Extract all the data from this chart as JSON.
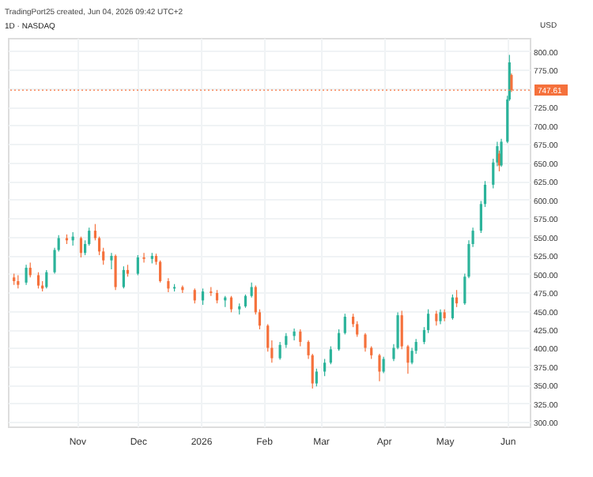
{
  "chart_data": {
    "type": "candlestick",
    "title": "1D · NASDAQ",
    "annotations": [
      "TradingPort25 created, Jun 04, 2026 09:42 UTC+2"
    ],
    "ylabel": "USD",
    "x": [
      "2025-10-01",
      "2025-10-03",
      "2025-10-07",
      "2025-10-09",
      "2025-10-13",
      "2025-10-15",
      "2025-10-17",
      "2025-10-21",
      "2025-10-23",
      "2025-10-27",
      "2025-10-30",
      "2025-11-03",
      "2025-11-05",
      "2025-11-07",
      "2025-11-10",
      "2025-11-12",
      "2025-11-14",
      "2025-11-18",
      "2025-11-20",
      "2025-11-24",
      "2025-11-26",
      "2025-12-01",
      "2025-12-04",
      "2025-12-08",
      "2025-12-10",
      "2025-12-12",
      "2025-12-16",
      "2025-12-19",
      "2025-12-23",
      "2025-12-29",
      "2026-01-02",
      "2026-01-06",
      "2026-01-09",
      "2026-01-13",
      "2026-01-16",
      "2026-01-20",
      "2026-01-23",
      "2026-01-26",
      "2026-01-28",
      "2026-01-30",
      "2026-02-03",
      "2026-02-05",
      "2026-02-09",
      "2026-02-12",
      "2026-02-16",
      "2026-02-19",
      "2026-02-23",
      "2026-02-25",
      "2026-02-27",
      "2026-03-03",
      "2026-03-06",
      "2026-03-10",
      "2026-03-13",
      "2026-03-17",
      "2026-03-19",
      "2026-03-23",
      "2026-03-26",
      "2026-03-30",
      "2026-04-01",
      "2026-04-06",
      "2026-04-08",
      "2026-04-10",
      "2026-04-13",
      "2026-04-15",
      "2026-04-17",
      "2026-04-21",
      "2026-04-23",
      "2026-04-27",
      "2026-04-29",
      "2026-05-01",
      "2026-05-05",
      "2026-05-07",
      "2026-05-11",
      "2026-05-13",
      "2026-05-15",
      "2026-05-19",
      "2026-05-21",
      "2026-05-25",
      "2026-05-27",
      "2026-05-28",
      "2026-05-29",
      "2026-06-01",
      "2026-06-02",
      "2026-06-03"
    ],
    "ohlc": [
      [
        495,
        500,
        485,
        490
      ],
      [
        490,
        498,
        480,
        485
      ],
      [
        488,
        512,
        485,
        508
      ],
      [
        508,
        515,
        495,
        498
      ],
      [
        498,
        502,
        480,
        484
      ],
      [
        484,
        490,
        476,
        480
      ],
      [
        482,
        505,
        480,
        502
      ],
      [
        502,
        535,
        500,
        532
      ],
      [
        532,
        552,
        530,
        548
      ],
      [
        548,
        553,
        540,
        545
      ],
      [
        545,
        556,
        538,
        550
      ],
      [
        548,
        550,
        522,
        528
      ],
      [
        528,
        545,
        525,
        540
      ],
      [
        540,
        562,
        538,
        558
      ],
      [
        558,
        567,
        545,
        548
      ],
      [
        548,
        550,
        525,
        530
      ],
      [
        530,
        535,
        512,
        518
      ],
      [
        518,
        528,
        506,
        524
      ],
      [
        524,
        526,
        478,
        482
      ],
      [
        482,
        510,
        480,
        505
      ],
      [
        505,
        512,
        496,
        500
      ],
      [
        500,
        525,
        498,
        522
      ],
      [
        522,
        528,
        515,
        520
      ],
      [
        520,
        528,
        514,
        524
      ],
      [
        524,
        527,
        512,
        516
      ],
      [
        516,
        518,
        488,
        490
      ],
      [
        490,
        494,
        475,
        480
      ],
      [
        480,
        486,
        476,
        482
      ],
      [
        482,
        484,
        474,
        478
      ],
      [
        478,
        480,
        460,
        464
      ],
      [
        464,
        480,
        458,
        476
      ],
      [
        476,
        482,
        470,
        474
      ],
      [
        474,
        478,
        460,
        464
      ],
      [
        464,
        470,
        455,
        468
      ],
      [
        468,
        470,
        448,
        452
      ],
      [
        452,
        460,
        445,
        456
      ],
      [
        456,
        472,
        454,
        470
      ],
      [
        470,
        488,
        468,
        482
      ],
      [
        482,
        484,
        445,
        448
      ],
      [
        448,
        452,
        425,
        430
      ],
      [
        430,
        432,
        395,
        400
      ],
      [
        400,
        410,
        380,
        386
      ],
      [
        386,
        408,
        384,
        404
      ],
      [
        404,
        420,
        400,
        416
      ],
      [
        416,
        426,
        410,
        422
      ],
      [
        422,
        425,
        402,
        408
      ],
      [
        408,
        410,
        385,
        390
      ],
      [
        390,
        392,
        345,
        352
      ],
      [
        352,
        372,
        348,
        368
      ],
      [
        368,
        385,
        362,
        380
      ],
      [
        380,
        402,
        378,
        398
      ],
      [
        398,
        425,
        396,
        420
      ],
      [
        420,
        446,
        418,
        442
      ],
      [
        442,
        446,
        428,
        432
      ],
      [
        432,
        436,
        415,
        418
      ],
      [
        418,
        420,
        395,
        400
      ],
      [
        400,
        402,
        385,
        390
      ],
      [
        390,
        392,
        355,
        368
      ],
      [
        368,
        388,
        366,
        385
      ],
      [
        385,
        405,
        382,
        400
      ],
      [
        400,
        448,
        398,
        444
      ],
      [
        444,
        450,
        398,
        402
      ],
      [
        402,
        404,
        365,
        380
      ],
      [
        380,
        400,
        378,
        396
      ],
      [
        396,
        412,
        392,
        408
      ],
      [
        408,
        428,
        405,
        424
      ],
      [
        424,
        452,
        420,
        446
      ],
      [
        446,
        450,
        430,
        436
      ],
      [
        436,
        452,
        432,
        448
      ],
      [
        448,
        452,
        436,
        440
      ],
      [
        440,
        472,
        438,
        468
      ],
      [
        468,
        478,
        455,
        460
      ],
      [
        460,
        500,
        458,
        496
      ],
      [
        496,
        545,
        494,
        540
      ],
      [
        540,
        562,
        536,
        558
      ],
      [
        558,
        598,
        555,
        594
      ],
      [
        594,
        625,
        590,
        620
      ],
      [
        620,
        655,
        615,
        650
      ],
      [
        650,
        678,
        645,
        672
      ],
      [
        662,
        666,
        638,
        646
      ],
      [
        646,
        682,
        644,
        678
      ],
      [
        678,
        740,
        676,
        735
      ],
      [
        735,
        795,
        733,
        785
      ],
      [
        768,
        770,
        745,
        747.61
      ]
    ],
    "colors": [
      "#f5713c",
      "#f5713c",
      "#2bb39a",
      "#f5713c",
      "#f5713c",
      "#f5713c",
      "#2bb39a",
      "#2bb39a",
      "#2bb39a",
      "#f5713c",
      "#2bb39a",
      "#f5713c",
      "#2bb39a",
      "#2bb39a",
      "#f5713c",
      "#f5713c",
      "#f5713c",
      "#2bb39a",
      "#f5713c",
      "#2bb39a",
      "#f5713c",
      "#2bb39a",
      "#f5713c",
      "#2bb39a",
      "#f5713c",
      "#f5713c",
      "#f5713c",
      "#2bb39a",
      "#f5713c",
      "#f5713c",
      "#2bb39a",
      "#f5713c",
      "#f5713c",
      "#2bb39a",
      "#f5713c",
      "#2bb39a",
      "#2bb39a",
      "#2bb39a",
      "#f5713c",
      "#f5713c",
      "#f5713c",
      "#f5713c",
      "#2bb39a",
      "#2bb39a",
      "#2bb39a",
      "#f5713c",
      "#f5713c",
      "#f5713c",
      "#2bb39a",
      "#2bb39a",
      "#2bb39a",
      "#2bb39a",
      "#2bb39a",
      "#f5713c",
      "#f5713c",
      "#f5713c",
      "#f5713c",
      "#f5713c",
      "#2bb39a",
      "#2bb39a",
      "#2bb39a",
      "#f5713c",
      "#f5713c",
      "#2bb39a",
      "#2bb39a",
      "#2bb39a",
      "#2bb39a",
      "#f5713c",
      "#2bb39a",
      "#f5713c",
      "#2bb39a",
      "#f5713c",
      "#2bb39a",
      "#2bb39a",
      "#2bb39a",
      "#2bb39a",
      "#2bb39a",
      "#2bb39a",
      "#2bb39a",
      "#f5713c",
      "#2bb39a",
      "#2bb39a",
      "#2bb39a",
      "#f5713c"
    ],
    "xlim": [
      "2025-09-28",
      "2026-06-12"
    ],
    "xticks": [
      {
        "value": "2025-11-01",
        "label": "Nov"
      },
      {
        "value": "2025-12-01",
        "label": "Dec"
      },
      {
        "value": "2026-01-01",
        "label": "2026"
      },
      {
        "value": "2026-02-01",
        "label": "Feb"
      },
      {
        "value": "2026-03-01",
        "label": "Mar"
      },
      {
        "value": "2026-04-01",
        "label": "Apr"
      },
      {
        "value": "2026-05-01",
        "label": "May"
      },
      {
        "value": "2026-06-01",
        "label": "Jun"
      }
    ],
    "ylim": [
      294,
      818
    ],
    "yticks": [
      {
        "value": 300,
        "label": "300.00"
      },
      {
        "value": 325,
        "label": "325.00"
      },
      {
        "value": 350,
        "label": "350.00"
      },
      {
        "value": 375,
        "label": "375.00"
      },
      {
        "value": 400,
        "label": "400.00"
      },
      {
        "value": 425,
        "label": "425.00"
      },
      {
        "value": 450,
        "label": "450.00"
      },
      {
        "value": 475,
        "label": "475.00"
      },
      {
        "value": 500,
        "label": "500.00"
      },
      {
        "value": 525,
        "label": "525.00"
      },
      {
        "value": 550,
        "label": "550.00"
      },
      {
        "value": 575,
        "label": "575.00"
      },
      {
        "value": 600,
        "label": "600.00"
      },
      {
        "value": 625,
        "label": "625.00"
      },
      {
        "value": 650,
        "label": "650.00"
      },
      {
        "value": 675,
        "label": "675.00"
      },
      {
        "value": 700,
        "label": "700.00"
      },
      {
        "value": 725,
        "label": "725.00"
      },
      {
        "value": 750,
        "label": null
      },
      {
        "value": 775,
        "label": "775.00"
      },
      {
        "value": 800,
        "label": "800.00"
      }
    ],
    "ref_lines": [
      {
        "axis": "y",
        "value": 747.61,
        "label": "747.61",
        "color": "#f5713c",
        "line_style": "dotted"
      }
    ],
    "grid": true
  }
}
